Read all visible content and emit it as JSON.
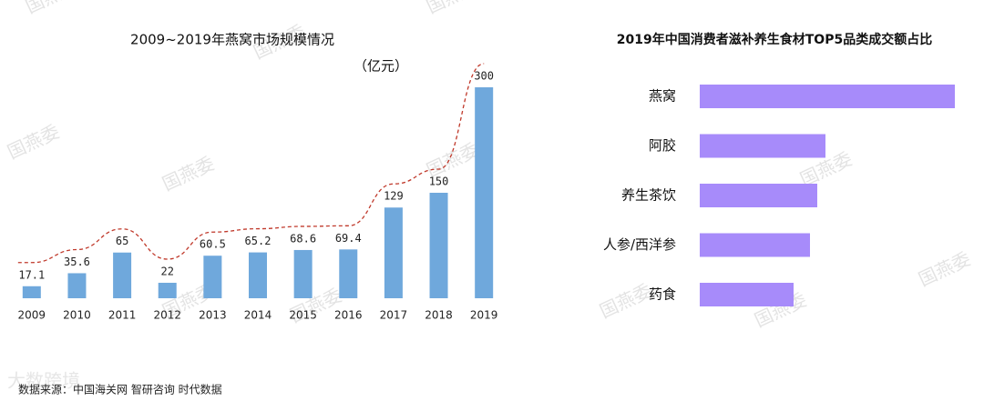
{
  "watermark": "国燕委",
  "logo": "大数跨境",
  "source": "数据来源：中国海关网 智研咨询 时代数据",
  "chart_data": [
    {
      "type": "bar",
      "title": "2009~2019年燕窝市场规模情况",
      "unit": "（亿元）",
      "categories": [
        "2009",
        "2010",
        "2011",
        "2012",
        "2013",
        "2014",
        "2015",
        "2016",
        "2017",
        "2018",
        "2019"
      ],
      "values": [
        17.1,
        35.6,
        65,
        22,
        60.5,
        65.2,
        68.6,
        69.4,
        129,
        150,
        300
      ],
      "color": "#6fa8dc",
      "trend_color": "#c0392b",
      "ylim": [
        0,
        300
      ]
    },
    {
      "type": "hbar",
      "title": "2019年中国消费者滋补养生食材TOP5品类成交额占比",
      "categories": [
        "燕窝",
        "阿胶",
        "养生茶饮",
        "人参/西洋参",
        "药食"
      ],
      "values": [
        28,
        13.8,
        12.9,
        12.1,
        10.3
      ],
      "color": "#a78bfa",
      "xlim": [
        0,
        28
      ]
    }
  ]
}
